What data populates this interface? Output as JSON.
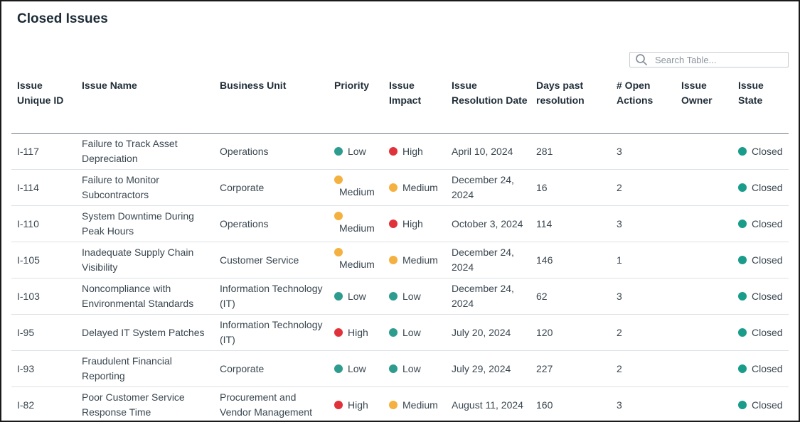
{
  "page": {
    "title": "Closed Issues"
  },
  "search": {
    "placeholder": "Search Table..."
  },
  "colors": {
    "low": "#2d9c8f",
    "high": "#e0323a",
    "medium": "#f4b13f",
    "closed": "#1a9c8b"
  },
  "table": {
    "headers": {
      "id": "Issue Unique ID",
      "name": "Issue Name",
      "unit": "Business Unit",
      "priority": "Priority",
      "impact": "Issue Impact",
      "date": "Issue Resolution Date",
      "days": "Days past resolution",
      "actions": "# Open Actions",
      "owner": "Issue Owner",
      "state": "Issue State"
    },
    "rows": [
      {
        "id": "I-117",
        "name": "Failure to Track Asset Depreciation",
        "unit": "Operations",
        "priority": "Low",
        "impact": "High",
        "date": "April 10, 2024",
        "days": "281",
        "actions": "3",
        "owner": "",
        "state": "Closed"
      },
      {
        "id": "I-114",
        "name": "Failure to Monitor Subcontractors",
        "unit": "Corporate",
        "priority": "Medium",
        "impact": "Medium",
        "date": "December 24, 2024",
        "days": "16",
        "actions": "2",
        "owner": "",
        "state": "Closed"
      },
      {
        "id": "I-110",
        "name": "System Downtime During Peak Hours",
        "unit": "Operations",
        "priority": "Medium",
        "impact": "High",
        "date": "October 3, 2024",
        "days": "114",
        "actions": "3",
        "owner": "",
        "state": "Closed"
      },
      {
        "id": "I-105",
        "name": "Inadequate Supply Chain Visibility",
        "unit": "Customer Service",
        "priority": "Medium",
        "impact": "Medium",
        "date": "December 24, 2024",
        "days": "146",
        "actions": "1",
        "owner": "",
        "state": "Closed"
      },
      {
        "id": "I-103",
        "name": "Noncompliance with Environmental Standards",
        "unit": "Information Technology (IT)",
        "priority": "Low",
        "impact": "Low",
        "date": "December 24, 2024",
        "days": "62",
        "actions": "3",
        "owner": "",
        "state": "Closed"
      },
      {
        "id": "I-95",
        "name": "Delayed IT System Patches",
        "unit": "Information Technology (IT)",
        "priority": "High",
        "impact": "Low",
        "date": "July 20, 2024",
        "days": "120",
        "actions": "2",
        "owner": "",
        "state": "Closed"
      },
      {
        "id": "I-93",
        "name": "Fraudulent Financial Reporting",
        "unit": "Corporate",
        "priority": "Low",
        "impact": "Low",
        "date": "July 29, 2024",
        "days": "227",
        "actions": "2",
        "owner": "",
        "state": "Closed"
      },
      {
        "id": "I-82",
        "name": "Poor Customer Service Response Time",
        "unit": "Procurement and Vendor Management",
        "priority": "High",
        "impact": "Medium",
        "date": "August 11, 2024",
        "days": "160",
        "actions": "3",
        "owner": "",
        "state": "Closed"
      }
    ]
  }
}
